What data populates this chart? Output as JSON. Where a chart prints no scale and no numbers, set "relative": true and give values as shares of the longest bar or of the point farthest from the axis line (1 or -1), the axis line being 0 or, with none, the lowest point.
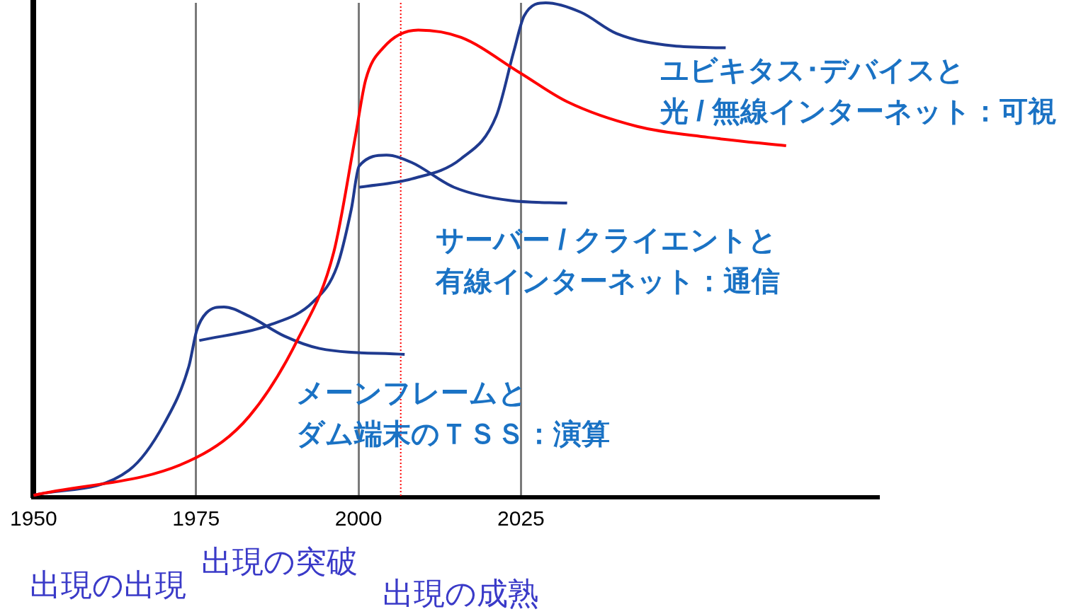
{
  "chart_data": {
    "type": "line",
    "relative": true,
    "xlim": [
      1950,
      2080
    ],
    "xticks": [
      1950,
      1975,
      2000,
      2025
    ],
    "grid": "x",
    "marker": "none",
    "line_style": "solid",
    "ref_lines": [
      {
        "axis": "x",
        "value": 2006.5,
        "color": "#ff0000",
        "line_style": "dotted"
      }
    ],
    "annotations": [
      "出現の出現",
      "出現の突破",
      "出現の成熟"
    ],
    "series": [
      {
        "name": "メーンフレームとダム端末のＴＳＳ：演算",
        "color": "#1f3a8f",
        "x": [
          1950,
          1964.7,
          1970.1,
          1973.9,
          1975.1,
          1976.6,
          1979.3,
          1983.2,
          1988.6,
          1994,
          2007.1
        ],
        "values": [
          0.004,
          0.055,
          0.149,
          0.265,
          0.337,
          0.373,
          0.385,
          0.366,
          0.326,
          0.301,
          0.289
        ]
      },
      {
        "name": "サーバー / クライエントと有線インターネット：通信",
        "color": "#1f3a8f",
        "x": [
          1975.5,
          1986.4,
          1993,
          1996.7,
          1998.9,
          2000.1,
          2004.3,
          2008.2,
          2014.7,
          2023.4,
          2032.1
        ],
        "values": [
          0.317,
          0.349,
          0.395,
          0.467,
          0.583,
          0.67,
          0.692,
          0.677,
          0.627,
          0.6,
          0.595
        ]
      },
      {
        "name": "ユビキタス･デバイスと光 / 無線インターネット：可視",
        "color": "#1f3a8f",
        "x": [
          2000.1,
          2008.2,
          2015.8,
          2021.2,
          2023.9,
          2025.5,
          2028.8,
          2034.2,
          2039.7,
          2048.4,
          2056.5
        ],
        "values": [
          0.627,
          0.644,
          0.685,
          0.771,
          0.902,
          0.974,
          1,
          0.981,
          0.938,
          0.913,
          0.909
        ]
      },
      {
        "color": "#ff0000",
        "x": [
          1950,
          1975,
          1983.2,
          1990.8,
          1996.2,
          1999.5,
          2001.1,
          2003.8,
          2009.2,
          2015.8,
          2024.9,
          2032.1,
          2042.9,
          2053.8,
          2065.8
        ],
        "values": [
          0.004,
          0.08,
          0.164,
          0.323,
          0.496,
          0.728,
          0.844,
          0.909,
          0.945,
          0.93,
          0.858,
          0.8,
          0.75,
          0.728,
          0.711
        ]
      }
    ]
  }
}
